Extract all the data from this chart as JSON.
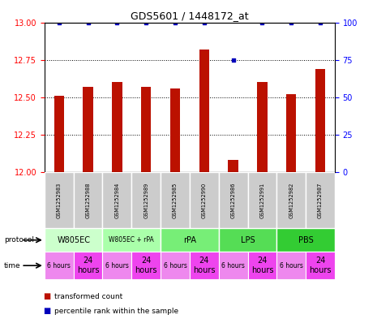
{
  "title": "GDS5601 / 1448172_at",
  "samples": [
    "GSM1252983",
    "GSM1252988",
    "GSM1252984",
    "GSM1252989",
    "GSM1252985",
    "GSM1252990",
    "GSM1252986",
    "GSM1252991",
    "GSM1252982",
    "GSM1252987"
  ],
  "bar_values": [
    12.51,
    12.57,
    12.6,
    12.57,
    12.56,
    12.82,
    12.08,
    12.6,
    12.52,
    12.69
  ],
  "percentile_values": [
    100,
    100,
    100,
    100,
    100,
    100,
    75,
    100,
    100,
    100
  ],
  "bar_color": "#bb1100",
  "dot_color": "#0000bb",
  "ylim_left": [
    12.0,
    13.0
  ],
  "ylim_right": [
    0,
    100
  ],
  "yticks_left": [
    12.0,
    12.25,
    12.5,
    12.75,
    13.0
  ],
  "yticks_right": [
    0,
    25,
    50,
    75,
    100
  ],
  "protocols": [
    {
      "label": "W805EC",
      "start": 0,
      "end": 2,
      "color": "#ccffcc"
    },
    {
      "label": "W805EC + rPA",
      "start": 2,
      "end": 4,
      "color": "#aaffaa"
    },
    {
      "label": "rPA",
      "start": 4,
      "end": 6,
      "color": "#77ee77"
    },
    {
      "label": "LPS",
      "start": 6,
      "end": 8,
      "color": "#55dd55"
    },
    {
      "label": "PBS",
      "start": 8,
      "end": 10,
      "color": "#33cc33"
    }
  ],
  "times": [
    "6 hours",
    "24\nhours",
    "6 hours",
    "24\nhours",
    "6 hours",
    "24\nhours",
    "6 hours",
    "24\nhours",
    "6 hours",
    "24\nhours"
  ],
  "time_color_6h": "#ee88ee",
  "time_color_24h": "#ee44ee",
  "sample_box_color": "#cccccc",
  "legend_transformed": "transformed count",
  "legend_percentile": "percentile rank within the sample",
  "fig_width": 4.65,
  "fig_height": 3.93,
  "dpi": 100
}
